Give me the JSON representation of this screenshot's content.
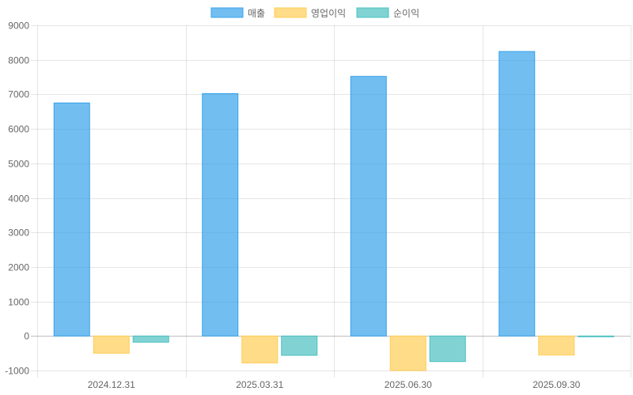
{
  "chart_data": {
    "type": "bar",
    "categories": [
      "2024.12.31",
      "2025.03.31",
      "2025.06.30",
      "2025.09.30"
    ],
    "series": [
      {
        "name": "매출",
        "values": [
          6750,
          7020,
          7520,
          8240
        ],
        "fill": "#36A2EB",
        "stroke": "#36A2EB"
      },
      {
        "name": "영업이익",
        "values": [
          -500,
          -780,
          -1000,
          -550
        ],
        "fill": "#FFCD56",
        "stroke": "#FFCD56"
      },
      {
        "name": "순이익",
        "values": [
          -180,
          -560,
          -740,
          -20
        ],
        "fill": "#4BC0C0",
        "stroke": "#4BC0C0"
      }
    ],
    "ylim": [
      -1000,
      9000
    ],
    "yticks": [
      -1000,
      0,
      1000,
      2000,
      3000,
      4000,
      5000,
      6000,
      7000,
      8000,
      9000
    ],
    "grid": true,
    "legend_position": "top"
  }
}
